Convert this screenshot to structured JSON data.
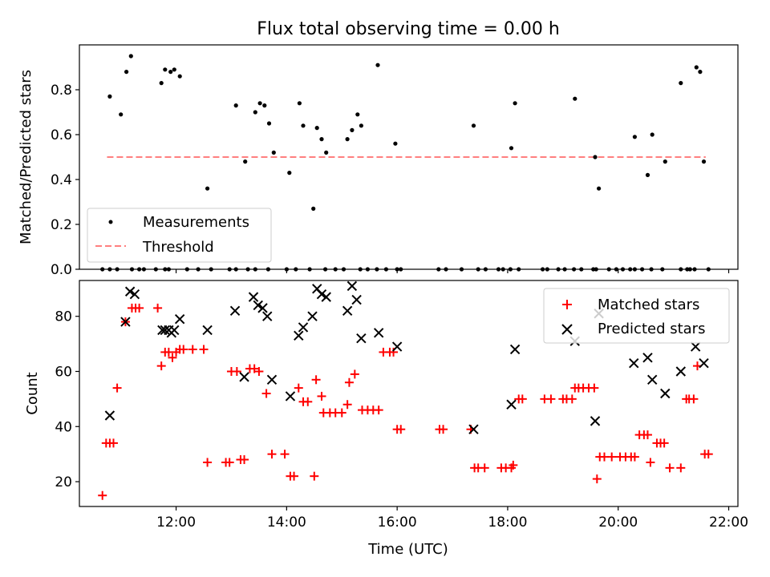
{
  "chart_data": [
    {
      "type": "scatter",
      "title": "Flux total observing time = 0.00 h",
      "xlabel": "",
      "ylabel": "Matched/Predicted stars",
      "xlim": [
        "10:15",
        "22:10"
      ],
      "ylim": [
        0,
        1.0
      ],
      "yticks": [
        0.0,
        0.2,
        0.4,
        0.6,
        0.8
      ],
      "ytick_labels": [
        "0.0",
        "0.2",
        "0.4",
        "0.6",
        "0.8"
      ],
      "grid": false,
      "legend": {
        "position": "lower-left",
        "entries": [
          "Measurements",
          "Threshold"
        ]
      },
      "series": [
        {
          "name": "Measurements",
          "marker": "dot",
          "color": "#000000",
          "points": [
            [
              "10:48",
              0.77
            ],
            [
              "11:00",
              0.69
            ],
            [
              "11:06",
              0.88
            ],
            [
              "11:11",
              0.95
            ],
            [
              "11:44",
              0.83
            ],
            [
              "11:48",
              0.89
            ],
            [
              "11:54",
              0.88
            ],
            [
              "11:58",
              0.89
            ],
            [
              "12:04",
              0.86
            ],
            [
              "12:34",
              0.36
            ],
            [
              "13:05",
              0.73
            ],
            [
              "13:15",
              0.48
            ],
            [
              "13:26",
              0.7
            ],
            [
              "13:31",
              0.74
            ],
            [
              "13:36",
              0.73
            ],
            [
              "13:41",
              0.65
            ],
            [
              "13:46",
              0.52
            ],
            [
              "14:03",
              0.43
            ],
            [
              "14:14",
              0.74
            ],
            [
              "14:18",
              0.64
            ],
            [
              "14:29",
              0.27
            ],
            [
              "14:33",
              0.63
            ],
            [
              "14:38",
              0.58
            ],
            [
              "14:43",
              0.52
            ],
            [
              "15:06",
              0.58
            ],
            [
              "15:11",
              0.62
            ],
            [
              "15:17",
              0.69
            ],
            [
              "15:21",
              0.64
            ],
            [
              "15:39",
              0.91
            ],
            [
              "15:58",
              0.56
            ],
            [
              "17:23",
              0.64
            ],
            [
              "18:04",
              0.54
            ],
            [
              "18:08",
              0.74
            ],
            [
              "19:13",
              0.76
            ],
            [
              "19:35",
              0.5
            ],
            [
              "19:39",
              0.36
            ],
            [
              "20:18",
              0.59
            ],
            [
              "20:32",
              0.42
            ],
            [
              "20:37",
              0.6
            ],
            [
              "20:51",
              0.48
            ],
            [
              "21:08",
              0.83
            ],
            [
              "21:25",
              0.9
            ],
            [
              "21:29",
              0.88
            ],
            [
              "21:33",
              0.48
            ],
            [
              "10:40",
              0.0
            ],
            [
              "10:48",
              0.0
            ],
            [
              "10:56",
              0.0
            ],
            [
              "11:12",
              0.0
            ],
            [
              "11:20",
              0.0
            ],
            [
              "11:25",
              0.0
            ],
            [
              "11:38",
              0.0
            ],
            [
              "11:48",
              0.0
            ],
            [
              "11:52",
              0.0
            ],
            [
              "12:12",
              0.0
            ],
            [
              "12:24",
              0.0
            ],
            [
              "12:38",
              0.0
            ],
            [
              "12:58",
              0.0
            ],
            [
              "13:05",
              0.0
            ],
            [
              "13:18",
              0.0
            ],
            [
              "13:26",
              0.0
            ],
            [
              "13:40",
              0.0
            ],
            [
              "14:00",
              0.0
            ],
            [
              "14:10",
              0.0
            ],
            [
              "14:25",
              0.0
            ],
            [
              "14:42",
              0.0
            ],
            [
              "14:53",
              0.0
            ],
            [
              "15:02",
              0.0
            ],
            [
              "15:20",
              0.0
            ],
            [
              "15:28",
              0.0
            ],
            [
              "15:38",
              0.0
            ],
            [
              "15:48",
              0.0
            ],
            [
              "16:00",
              0.0
            ],
            [
              "16:04",
              0.0
            ],
            [
              "16:45",
              0.0
            ],
            [
              "16:53",
              0.0
            ],
            [
              "17:10",
              0.0
            ],
            [
              "17:28",
              0.0
            ],
            [
              "17:36",
              0.0
            ],
            [
              "17:50",
              0.0
            ],
            [
              "17:55",
              0.0
            ],
            [
              "18:03",
              0.0
            ],
            [
              "18:12",
              0.0
            ],
            [
              "18:38",
              0.0
            ],
            [
              "18:43",
              0.0
            ],
            [
              "18:55",
              0.0
            ],
            [
              "19:02",
              0.0
            ],
            [
              "19:12",
              0.0
            ],
            [
              "19:20",
              0.0
            ],
            [
              "19:33",
              0.0
            ],
            [
              "19:36",
              0.0
            ],
            [
              "19:50",
              0.0
            ],
            [
              "19:58",
              0.0
            ],
            [
              "20:05",
              0.0
            ],
            [
              "20:13",
              0.0
            ],
            [
              "20:18",
              0.0
            ],
            [
              "20:26",
              0.0
            ],
            [
              "20:36",
              0.0
            ],
            [
              "20:48",
              0.0
            ],
            [
              "21:08",
              0.0
            ],
            [
              "21:15",
              0.0
            ],
            [
              "21:18",
              0.0
            ],
            [
              "21:23",
              0.0
            ],
            [
              "21:38",
              0.0
            ]
          ]
        },
        {
          "name": "Threshold",
          "line": "dashed",
          "color": "#ff7f7f",
          "points": [
            [
              "10:45",
              0.5
            ],
            [
              "21:35",
              0.5
            ]
          ]
        }
      ]
    },
    {
      "type": "scatter",
      "title": "",
      "xlabel": "Time (UTC)",
      "ylabel": "Count",
      "xlim": [
        "10:15",
        "22:10"
      ],
      "ylim": [
        11,
        93
      ],
      "xticks": [
        "12:00",
        "14:00",
        "16:00",
        "18:00",
        "20:00",
        "22:00"
      ],
      "yticks": [
        20,
        40,
        60,
        80
      ],
      "ytick_labels": [
        "20",
        "40",
        "60",
        "80"
      ],
      "grid": false,
      "legend": {
        "position": "upper-right",
        "entries": [
          "Matched stars",
          "Predicted stars"
        ]
      },
      "series": [
        {
          "name": "Matched stars",
          "marker": "plus",
          "color": "#ff0000",
          "points": [
            [
              "10:40",
              15
            ],
            [
              "10:44",
              34
            ],
            [
              "10:48",
              34
            ],
            [
              "10:52",
              34
            ],
            [
              "10:56",
              54
            ],
            [
              "11:05",
              78
            ],
            [
              "11:12",
              83
            ],
            [
              "11:16",
              83
            ],
            [
              "11:20",
              83
            ],
            [
              "11:40",
              83
            ],
            [
              "11:44",
              62
            ],
            [
              "11:48",
              67
            ],
            [
              "11:52",
              67
            ],
            [
              "11:56",
              65
            ],
            [
              "12:00",
              67
            ],
            [
              "12:04",
              68
            ],
            [
              "12:08",
              68
            ],
            [
              "12:18",
              68
            ],
            [
              "12:30",
              68
            ],
            [
              "12:34",
              27
            ],
            [
              "12:54",
              27
            ],
            [
              "12:58",
              27
            ],
            [
              "13:00",
              60
            ],
            [
              "13:06",
              60
            ],
            [
              "13:10",
              28
            ],
            [
              "13:14",
              28
            ],
            [
              "13:20",
              61
            ],
            [
              "13:25",
              61
            ],
            [
              "13:30",
              60
            ],
            [
              "13:38",
              52
            ],
            [
              "13:44",
              30
            ],
            [
              "13:58",
              30
            ],
            [
              "14:04",
              22
            ],
            [
              "14:08",
              22
            ],
            [
              "14:13",
              54
            ],
            [
              "14:18",
              49
            ],
            [
              "14:23",
              49
            ],
            [
              "14:30",
              22
            ],
            [
              "14:32",
              57
            ],
            [
              "14:38",
              51
            ],
            [
              "14:40",
              45
            ],
            [
              "14:47",
              45
            ],
            [
              "14:53",
              45
            ],
            [
              "15:00",
              45
            ],
            [
              "15:06",
              48
            ],
            [
              "15:08",
              56
            ],
            [
              "15:14",
              59
            ],
            [
              "15:22",
              46
            ],
            [
              "15:28",
              46
            ],
            [
              "15:34",
              46
            ],
            [
              "15:40",
              46
            ],
            [
              "15:45",
              67
            ],
            [
              "15:52",
              67
            ],
            [
              "15:56",
              67
            ],
            [
              "16:00",
              39
            ],
            [
              "16:04",
              39
            ],
            [
              "16:46",
              39
            ],
            [
              "16:50",
              39
            ],
            [
              "17:20",
              39
            ],
            [
              "17:24",
              25
            ],
            [
              "17:28",
              25
            ],
            [
              "17:35",
              25
            ],
            [
              "17:53",
              25
            ],
            [
              "17:58",
              25
            ],
            [
              "18:04",
              25
            ],
            [
              "18:06",
              26
            ],
            [
              "18:12",
              50
            ],
            [
              "18:16",
              50
            ],
            [
              "18:40",
              50
            ],
            [
              "18:47",
              50
            ],
            [
              "19:00",
              50
            ],
            [
              "19:04",
              50
            ],
            [
              "19:10",
              50
            ],
            [
              "19:13",
              54
            ],
            [
              "19:17",
              54
            ],
            [
              "19:22",
              54
            ],
            [
              "19:28",
              54
            ],
            [
              "19:34",
              54
            ],
            [
              "19:37",
              21
            ],
            [
              "19:40",
              29
            ],
            [
              "19:45",
              29
            ],
            [
              "19:53",
              29
            ],
            [
              "20:02",
              29
            ],
            [
              "20:08",
              29
            ],
            [
              "20:14",
              29
            ],
            [
              "20:18",
              29
            ],
            [
              "20:23",
              37
            ],
            [
              "20:28",
              37
            ],
            [
              "20:32",
              37
            ],
            [
              "20:35",
              27
            ],
            [
              "20:42",
              34
            ],
            [
              "20:46",
              34
            ],
            [
              "20:50",
              34
            ],
            [
              "20:56",
              25
            ],
            [
              "21:08",
              25
            ],
            [
              "21:14",
              50
            ],
            [
              "21:17",
              50
            ],
            [
              "21:22",
              50
            ],
            [
              "21:26",
              62
            ],
            [
              "21:34",
              30
            ],
            [
              "21:38",
              30
            ]
          ]
        },
        {
          "name": "Predicted stars",
          "marker": "x",
          "color": "#000000",
          "points": [
            [
              "10:48",
              44
            ],
            [
              "11:05",
              78
            ],
            [
              "11:10",
              89
            ],
            [
              "11:15",
              88
            ],
            [
              "11:45",
              75
            ],
            [
              "11:48",
              75
            ],
            [
              "11:52",
              75
            ],
            [
              "11:55",
              74
            ],
            [
              "11:58",
              75
            ],
            [
              "12:04",
              79
            ],
            [
              "12:34",
              75
            ],
            [
              "13:04",
              82
            ],
            [
              "13:14",
              58
            ],
            [
              "13:24",
              87
            ],
            [
              "13:29",
              84
            ],
            [
              "13:34",
              83
            ],
            [
              "13:39",
              80
            ],
            [
              "13:44",
              57
            ],
            [
              "14:04",
              51
            ],
            [
              "14:13",
              73
            ],
            [
              "14:18",
              76
            ],
            [
              "14:28",
              80
            ],
            [
              "14:33",
              90
            ],
            [
              "14:38",
              88
            ],
            [
              "14:43",
              87
            ],
            [
              "15:06",
              82
            ],
            [
              "15:11",
              91
            ],
            [
              "15:16",
              86
            ],
            [
              "15:21",
              72
            ],
            [
              "15:40",
              74
            ],
            [
              "16:00",
              69
            ],
            [
              "17:23",
              39
            ],
            [
              "18:04",
              48
            ],
            [
              "18:08",
              68
            ],
            [
              "19:13",
              71
            ],
            [
              "19:35",
              42
            ],
            [
              "19:39",
              81
            ],
            [
              "20:17",
              63
            ],
            [
              "20:32",
              65
            ],
            [
              "20:37",
              57
            ],
            [
              "20:51",
              52
            ],
            [
              "21:08",
              60
            ],
            [
              "21:24",
              69
            ],
            [
              "21:33",
              63
            ]
          ]
        }
      ]
    }
  ]
}
